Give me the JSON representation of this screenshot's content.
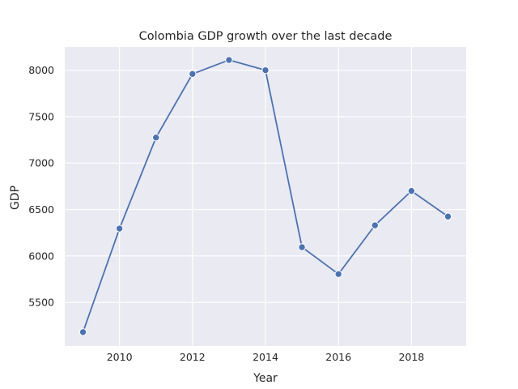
{
  "chart_data": {
    "type": "line",
    "title": "Colombia GDP growth over the last decade",
    "xlabel": "Year",
    "ylabel": "GDP",
    "x": [
      2009,
      2010,
      2011,
      2012,
      2013,
      2014,
      2015,
      2016,
      2017,
      2018,
      2019
    ],
    "series": [
      {
        "values": [
          5180,
          6295,
          7275,
          7960,
          8110,
          8000,
          6095,
          5805,
          6330,
          6700,
          6425
        ]
      }
    ],
    "xlim": [
      2008.5,
      2019.5
    ],
    "ylim": [
      5030,
      8250
    ],
    "xticks": [
      2010,
      2012,
      2014,
      2016,
      2018
    ],
    "yticks": [
      5500,
      6000,
      6500,
      7000,
      7500,
      8000
    ],
    "grid": true,
    "colors": {
      "background": "#eaeaf2",
      "grid": "#ffffff",
      "line": "#4c72b0"
    }
  }
}
